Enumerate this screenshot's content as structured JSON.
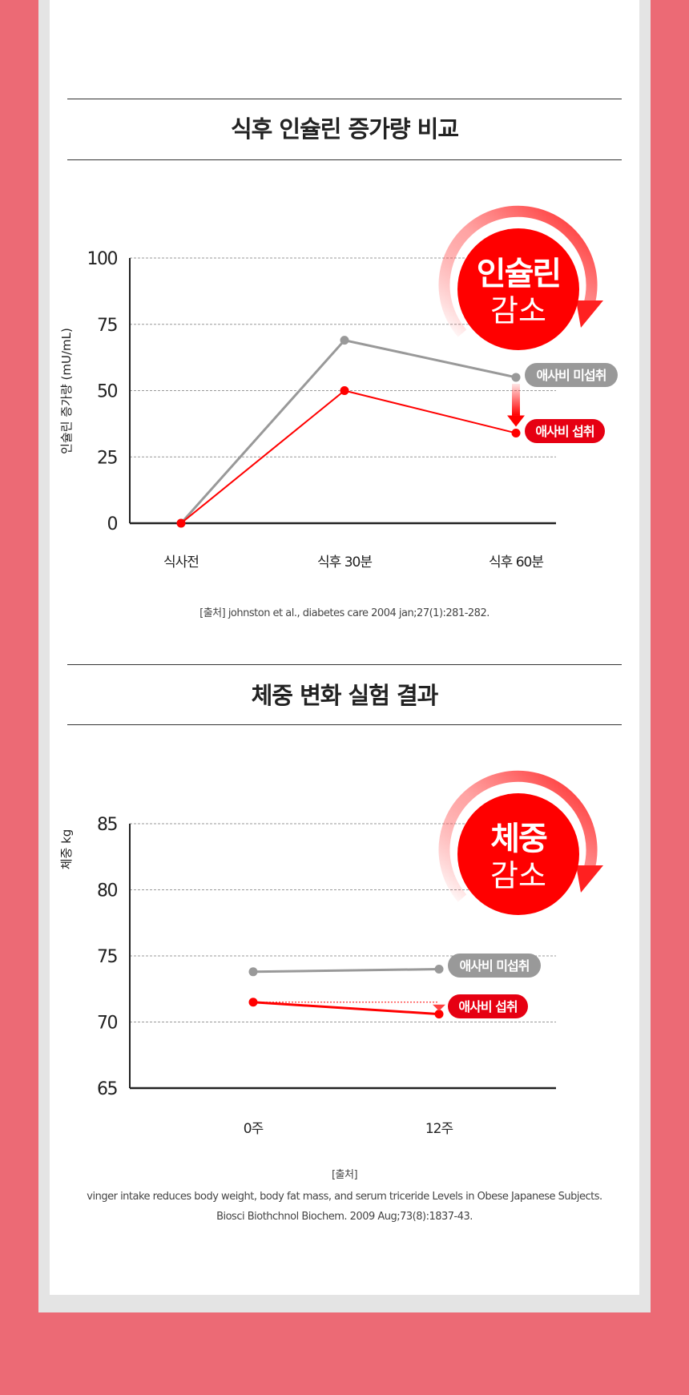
{
  "sections": [
    {
      "title": "식후 인슐린 증가량 비교",
      "citation": [
        "[출처] johnston et al., diabetes care 2004 jan;27(1):281-282."
      ]
    },
    {
      "title": "체중 변화 실험 결과",
      "citation": [
        "[출처]",
        "vinger intake reduces body weight, body fat mass, and serum triceride Levels in Obese Japanese Subjects.",
        "Biosci Biothchnol Biochem. 2009 Aug;73(8):1837-43."
      ]
    }
  ],
  "colors": {
    "red": "#ff0000",
    "gray": "#999999",
    "background": "#ec6a75",
    "badge_red": "#e60012"
  },
  "chart_data": [
    {
      "type": "line",
      "ylabel": "인슐린 증가량 (mU/mL)",
      "categories": [
        "식사전",
        "식후 30분",
        "식후 60분"
      ],
      "yticks": [
        0,
        25,
        50,
        75,
        100
      ],
      "ylim": [
        0,
        100
      ],
      "grid": true,
      "badge": [
        "인슐린",
        "감소"
      ],
      "series": [
        {
          "name": "애사비 미섭취",
          "color": "#999999",
          "values": [
            0,
            69,
            55
          ]
        },
        {
          "name": "애사비 섭취",
          "color": "#ff0000",
          "values": [
            0,
            50,
            34
          ]
        }
      ]
    },
    {
      "type": "line",
      "ylabel": "체중 kg",
      "categories": [
        "0주",
        "12주"
      ],
      "yticks": [
        65,
        70,
        75,
        80,
        85
      ],
      "ylim": [
        65,
        85
      ],
      "grid": true,
      "badge": [
        "체중",
        "감소"
      ],
      "series": [
        {
          "name": "애사비 미섭취",
          "color": "#999999",
          "values": [
            73.8,
            74.0
          ]
        },
        {
          "name": "애사비 섭취",
          "color": "#ff0000",
          "values": [
            71.5,
            70.6
          ]
        }
      ]
    }
  ]
}
